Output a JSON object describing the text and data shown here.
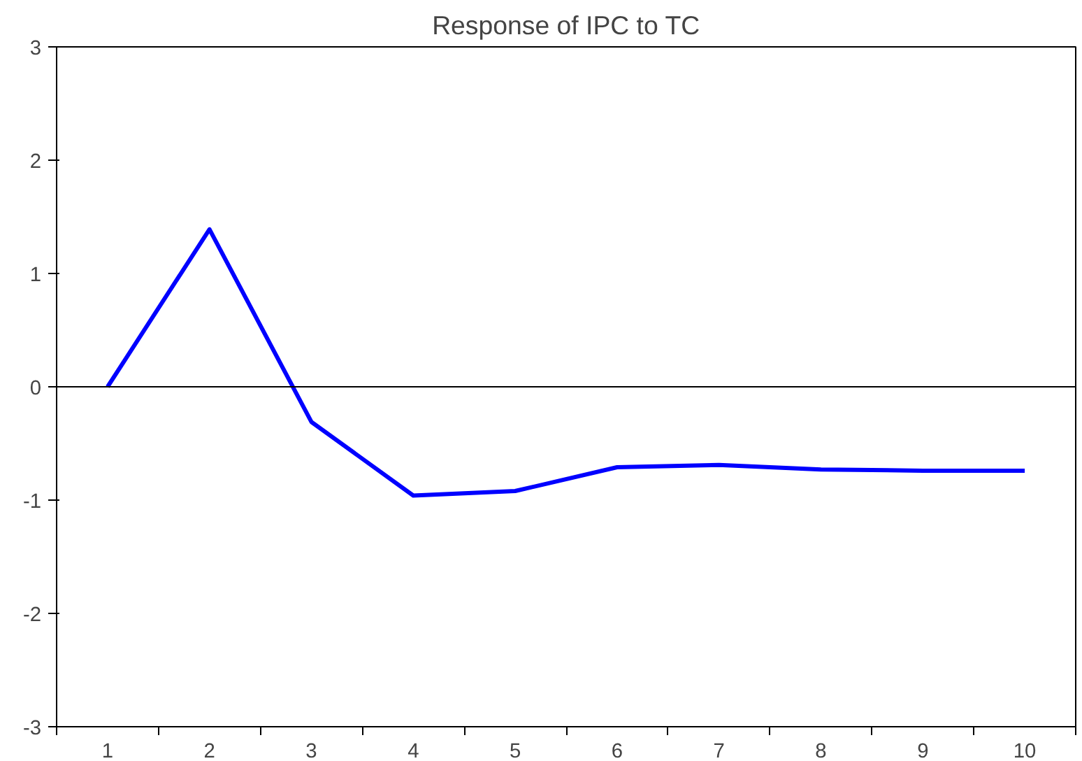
{
  "chart_data": {
    "type": "line",
    "title": "Response of IPC to TC",
    "categories": [
      "1",
      "2",
      "3",
      "4",
      "5",
      "6",
      "7",
      "8",
      "9",
      "10"
    ],
    "series": [
      {
        "color": "#0000ff",
        "values": [
          0,
          1.39,
          -0.31,
          -0.96,
          -0.92,
          -0.71,
          -0.69,
          -0.73,
          -0.74,
          -0.74
        ]
      }
    ],
    "ylim": [
      -3,
      3
    ],
    "yticks": [
      -3,
      -2,
      -1,
      0,
      1,
      2,
      3
    ],
    "ref_lines": [
      {
        "axis": "y",
        "value": 0,
        "color": "#000000"
      }
    ],
    "grid": false,
    "marker": "none",
    "line_style": "solid"
  }
}
